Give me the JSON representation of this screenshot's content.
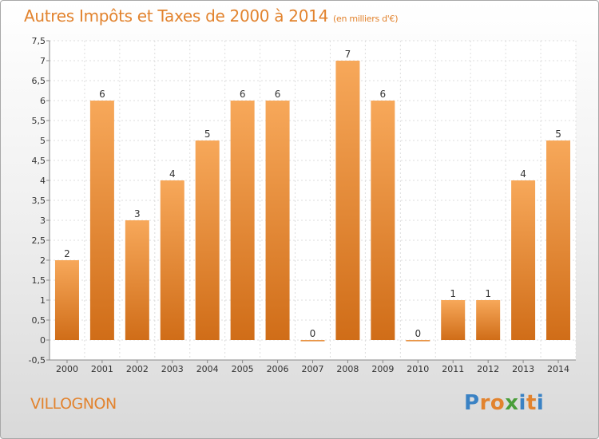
{
  "page": {
    "title": "Autres Impôts et Taxes de 2000 à 2014",
    "title_unit": "(en milliers d'€)",
    "commune": "VILLOGNON",
    "logo": {
      "text": "Proxiti",
      "letters": [
        "P",
        "r",
        "o",
        "x",
        "i",
        "t",
        "i"
      ],
      "colors": [
        "#3a82c4",
        "#e2832e",
        "#e2832e",
        "#4a9e3a",
        "#3a82c4",
        "#e2832e",
        "#3a82c4"
      ]
    }
  },
  "colors": {
    "accent": "#e2832e",
    "bar_top": "#f7a85a",
    "bar_bottom": "#d06d18"
  },
  "chart_data": {
    "type": "bar",
    "title": "Autres Impôts et Taxes de 2000 à 2014",
    "subtitle": "(en milliers d'€)",
    "categories": [
      "2000",
      "2001",
      "2002",
      "2003",
      "2004",
      "2005",
      "2006",
      "2007",
      "2008",
      "2009",
      "2010",
      "2011",
      "2012",
      "2013",
      "2014"
    ],
    "values": [
      2,
      6,
      3,
      4,
      5,
      6,
      6,
      0,
      7,
      6,
      0,
      1,
      1,
      4,
      5
    ],
    "value_labels": [
      "2",
      "6",
      "3",
      "4",
      "5",
      "6",
      "6",
      "0",
      "7",
      "6",
      "0",
      "1",
      "1",
      "4",
      "5"
    ],
    "ylim": [
      -0.5,
      7.5
    ],
    "yticks": [
      -0.5,
      0,
      0.5,
      1,
      1.5,
      2,
      2.5,
      3,
      3.5,
      4,
      4.5,
      5,
      5.5,
      6,
      6.5,
      7,
      7.5
    ],
    "ytick_labels": [
      "-0,5",
      "0",
      "0,5",
      "1",
      "1,5",
      "2",
      "2,5",
      "3",
      "3,5",
      "4",
      "4,5",
      "5",
      "5,5",
      "6",
      "6,5",
      "7",
      "7,5"
    ],
    "grid": true,
    "xlabel": "",
    "ylabel": ""
  }
}
